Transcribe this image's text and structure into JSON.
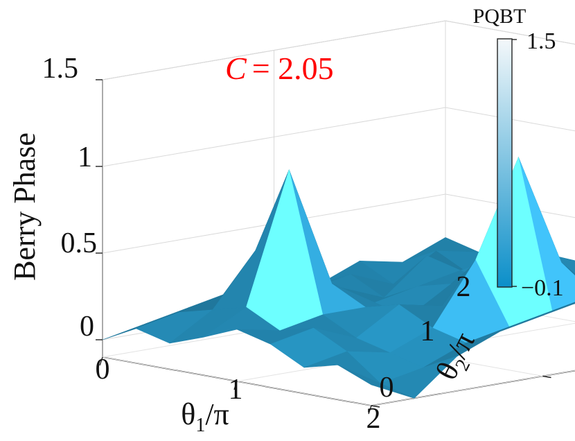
{
  "chart_data": {
    "type": "surface",
    "xlabel": "θ1/π",
    "ylabel": "θ2/π",
    "zlabel": "Berry Phase",
    "x": [
      0,
      0.25,
      0.5,
      0.75,
      1,
      1.25,
      1.5,
      1.75,
      2
    ],
    "y": [
      0,
      0.25,
      0.5,
      0.75,
      1,
      1.25,
      1.5,
      1.75,
      2
    ],
    "z": [
      [
        0.0,
        0.1,
        0.05,
        0.12,
        0.2,
        0.15,
        0.05,
        0.1,
        0.02
      ],
      [
        0.05,
        0.15,
        0.2,
        0.25,
        0.15,
        0.2,
        0.1,
        -0.05,
        -0.1
      ],
      [
        0.1,
        0.2,
        0.5,
        1.0,
        0.2,
        0.1,
        0.05,
        0.0,
        0.1
      ],
      [
        0.15,
        0.25,
        0.35,
        0.3,
        0.2,
        0.25,
        0.15,
        0.1,
        0.2
      ],
      [
        0.2,
        0.15,
        0.2,
        0.15,
        0.1,
        0.2,
        0.5,
        0.15,
        0.25
      ],
      [
        0.1,
        0.2,
        0.1,
        0.2,
        0.25,
        0.45,
        1.05,
        0.2,
        0.3
      ],
      [
        0.2,
        0.1,
        0.3,
        0.25,
        0.2,
        0.3,
        0.4,
        0.25,
        0.25
      ],
      [
        0.15,
        0.25,
        0.15,
        0.3,
        0.35,
        0.2,
        0.15,
        0.3,
        0.3
      ],
      [
        0.25,
        0.2,
        0.3,
        0.2,
        0.25,
        0.35,
        0.25,
        0.3,
        0.35
      ]
    ],
    "xticks": [
      "0",
      "1",
      "2"
    ],
    "yticks": [
      "0",
      "1",
      "2"
    ],
    "zticks": [
      "0",
      "0.5",
      "1",
      "1.5"
    ],
    "xlim": [
      0,
      2
    ],
    "ylim": [
      0,
      2
    ],
    "zlim": [
      -0.1,
      1.5
    ],
    "grid": true,
    "annotation": {
      "prefix": "C",
      "value": "= 2.05",
      "color": "#ff0000"
    },
    "colorbar": {
      "label": "PQBT",
      "max_label": "1.5",
      "min_label": "−0.1",
      "range": [
        -0.1,
        1.5
      ],
      "color_low": "#0b8fc9",
      "color_high": "#f4f8fa"
    },
    "surface_color": "#2a9fd0"
  }
}
